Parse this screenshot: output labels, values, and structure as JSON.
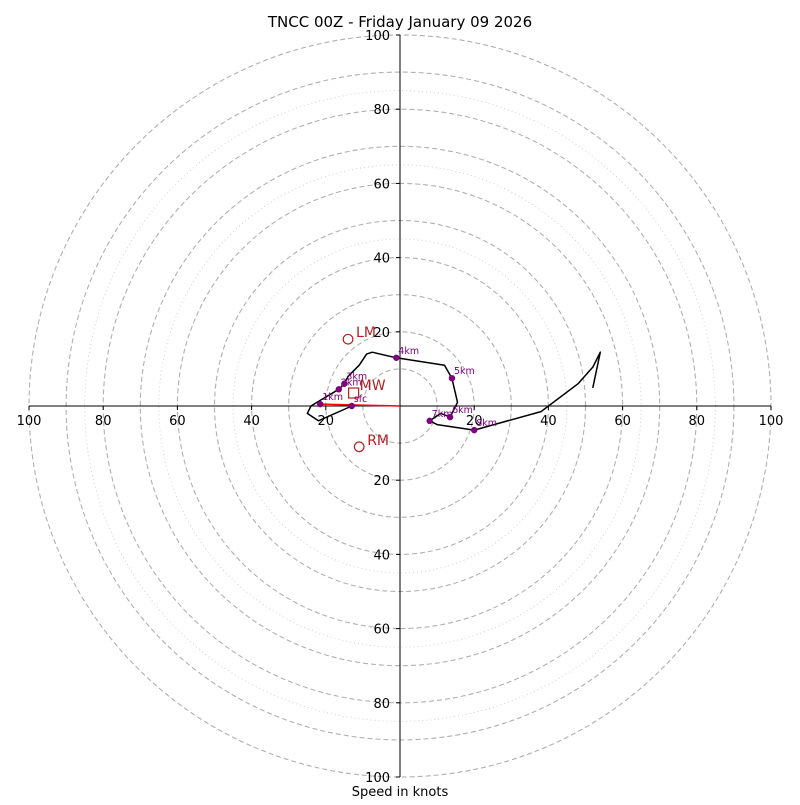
{
  "chart_data": {
    "type": "hodograph",
    "title": "TNCC 00Z - Friday January 09 2026",
    "xlabel": "Speed in knots",
    "ylabel": "",
    "xlim": [
      -100,
      100
    ],
    "ylim": [
      -100,
      100
    ],
    "x_tick_values": [
      -100,
      -80,
      -60,
      -40,
      -20,
      20,
      40,
      60,
      80,
      100
    ],
    "x_tick_labels": [
      "100",
      "80",
      "60",
      "40",
      "20",
      "20",
      "40",
      "60",
      "80",
      "100"
    ],
    "y_tick_values": [
      100,
      80,
      60,
      40,
      20,
      -20,
      -40,
      -60,
      -80,
      -100
    ],
    "y_tick_labels": [
      "100",
      "80",
      "60",
      "40",
      "20",
      "20",
      "40",
      "60",
      "80",
      "100"
    ],
    "rings_dashed": [
      10,
      20,
      30,
      40,
      50,
      60,
      70,
      80,
      90,
      100
    ],
    "rings_dotted": [
      50,
      70,
      90
    ],
    "colors": {
      "trace": "#000000",
      "markers": "#800080",
      "storm_motion": "#b22222",
      "shear_vector": "#ff0000",
      "ring": "#b0b0b0",
      "ring_dotted": "#cccccc",
      "axis": "#000000"
    },
    "hodograph_trace": [
      [
        -13,
        0
      ],
      [
        -22,
        -4
      ],
      [
        -25,
        -2
      ],
      [
        -24,
        0
      ],
      [
        -21.5,
        1.5
      ],
      [
        -16.5,
        4.5
      ],
      [
        -15,
        6
      ],
      [
        -14,
        8
      ],
      [
        -11,
        11
      ],
      [
        -9,
        14
      ],
      [
        -7.5,
        14.5
      ],
      [
        -1,
        13
      ],
      [
        12,
        11
      ],
      [
        14,
        7.5
      ],
      [
        15.5,
        1
      ],
      [
        13.5,
        -3
      ],
      [
        11,
        -2
      ],
      [
        8,
        -4
      ],
      [
        10,
        -5
      ],
      [
        20,
        -6.5
      ],
      [
        38,
        -1.5
      ],
      [
        48,
        6
      ],
      [
        52,
        10.5
      ],
      [
        54,
        14.5
      ],
      [
        52,
        5
      ],
      [
        52.5,
        7.5
      ]
    ],
    "height_markers": [
      {
        "label": "1km",
        "u": -21.5,
        "v": 0.5
      },
      {
        "label": "2km",
        "u": -16.5,
        "v": 4.5
      },
      {
        "label": "3km",
        "u": -15,
        "v": 6
      },
      {
        "label": "4km",
        "u": -1,
        "v": 13
      },
      {
        "label": "5km",
        "u": 14,
        "v": 7.5
      },
      {
        "label": "6km",
        "u": 13.5,
        "v": -3
      },
      {
        "label": "7km",
        "u": 8,
        "v": -4
      },
      {
        "label": "8km",
        "u": 20,
        "v": -6.5
      },
      {
        "label": "sfc",
        "u": -13,
        "v": 0
      }
    ],
    "storm_motions": [
      {
        "label": "LM",
        "u": -14,
        "v": 18
      },
      {
        "label": "RM",
        "u": -11,
        "v": -11
      }
    ],
    "mean_wind": {
      "label": "MW",
      "u": -12.5,
      "v": 3.5
    },
    "shear_vector": {
      "from": [
        -21.5,
        0.5
      ],
      "to": [
        0,
        0
      ]
    }
  }
}
